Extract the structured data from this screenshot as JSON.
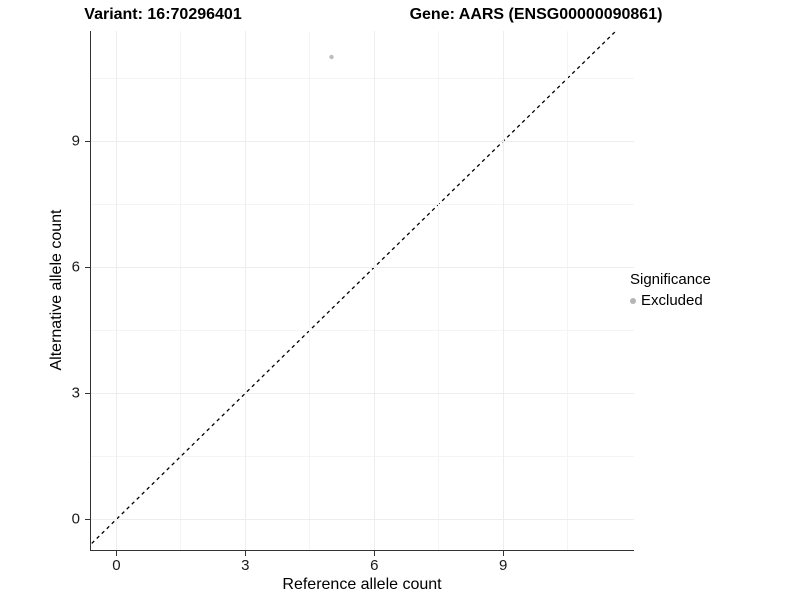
{
  "titles": {
    "left": "Variant: 16:70296401",
    "right": "Gene: AARS (ENSG00000090861)"
  },
  "axes": {
    "x": {
      "label": "Reference allele count"
    },
    "y": {
      "label": "Alternative allele count"
    }
  },
  "legend": {
    "title": "Significance",
    "items": [
      {
        "label": "Excluded",
        "color": "#b5b5b5"
      }
    ]
  },
  "colors": {
    "point": "#bdbdbd",
    "axis_line": "#333333",
    "grid_major": "#ededed",
    "grid_minor": "#f4f4f4",
    "reference_line": "#000000"
  },
  "chart_data": {
    "type": "scatter",
    "title": "Variant: 16:70296401    Gene: AARS (ENSG00000090861)",
    "xlabel": "Reference allele count",
    "ylabel": "Alternative allele count",
    "xlim": [
      -0.581,
      12.023
    ],
    "ylim": [
      -0.738,
      11.619
    ],
    "x_major_ticks": [
      0,
      3,
      6,
      9
    ],
    "y_major_ticks": [
      0,
      3,
      6,
      9
    ],
    "x_minor_gridlines": [
      1.5,
      4.5,
      7.5,
      10.5
    ],
    "y_minor_gridlines": [
      1.5,
      4.5,
      7.5,
      10.5
    ],
    "grid": true,
    "legend_position": "right",
    "series": [
      {
        "name": "Excluded",
        "color": "#bdbdbd",
        "point_radius": 2.2,
        "points": [
          {
            "x": 5,
            "y": 11
          }
        ]
      }
    ],
    "reference_line": {
      "description": "identity line y = x",
      "style": "dashed",
      "dash": "3.5 3.5",
      "width": 1.3,
      "color": "#000000"
    }
  }
}
